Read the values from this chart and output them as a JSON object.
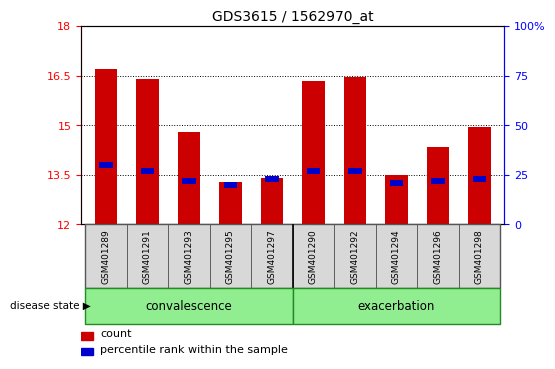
{
  "title": "GDS3615 / 1562970_at",
  "samples": [
    "GSM401289",
    "GSM401291",
    "GSM401293",
    "GSM401295",
    "GSM401297",
    "GSM401290",
    "GSM401292",
    "GSM401294",
    "GSM401296",
    "GSM401298"
  ],
  "count_values": [
    16.7,
    16.4,
    14.8,
    13.3,
    13.4,
    16.35,
    16.45,
    13.5,
    14.35,
    14.95
  ],
  "percentile_values": [
    30,
    27,
    22,
    20,
    23,
    27,
    27,
    21,
    22,
    23
  ],
  "ylim_left": [
    12,
    18
  ],
  "ylim_right": [
    0,
    100
  ],
  "yticks_left": [
    12,
    13.5,
    15,
    16.5,
    18
  ],
  "yticks_right": [
    0,
    25,
    50,
    75,
    100
  ],
  "convalescence_count": 5,
  "group_labels": [
    "convalescence",
    "exacerbation"
  ],
  "bar_color_red": "#cc0000",
  "bar_color_blue": "#0000cc",
  "bar_width": 0.55,
  "sample_bg_color": "#d8d8d8",
  "group_bg_color": "#90EE90",
  "group_border_color": "#228B22",
  "legend_red": "count",
  "legend_blue": "percentile rank within the sample",
  "disease_state_label": "disease state",
  "right_axis_color": "blue",
  "left_axis_color": "red",
  "title_fontsize": 10,
  "tick_fontsize": 8,
  "sample_fontsize": 6.5,
  "group_fontsize": 8.5,
  "legend_fontsize": 8
}
